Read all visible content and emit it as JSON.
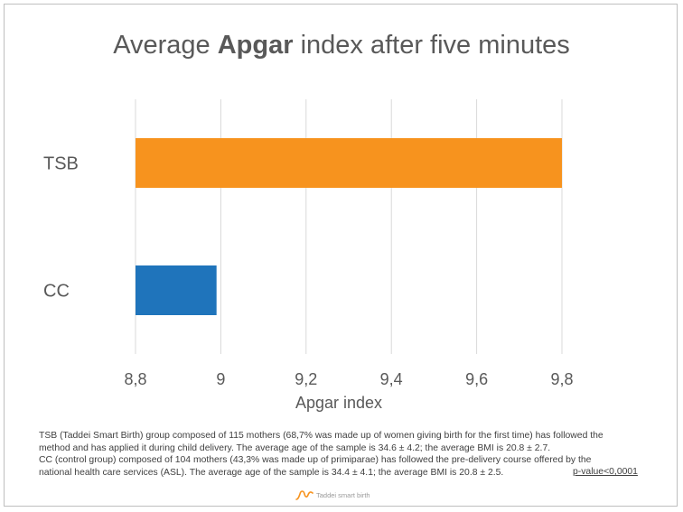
{
  "title": {
    "prefix": "Average ",
    "bold": "Apgar",
    "suffix": " index after five minutes"
  },
  "chart_data": {
    "type": "bar",
    "orientation": "horizontal",
    "title": "Average Apgar index after five minutes",
    "categories": [
      "TSB",
      "CC"
    ],
    "values": [
      9.8,
      8.99
    ],
    "colors": [
      "#f7931e",
      "#1f74bb"
    ],
    "xlabel": "Apgar index",
    "ylabel": "",
    "xlim": [
      8.8,
      9.8
    ],
    "x_ticks": [
      8.8,
      9.0,
      9.2,
      9.4,
      9.6,
      9.8
    ],
    "x_tick_labels": [
      "8,8",
      "9",
      "9,2",
      "9,4",
      "9,6",
      "9,8"
    ],
    "grid": "vertical",
    "legend": "none"
  },
  "footnote": {
    "lines": [
      "TSB (Taddei Smart Birth) group composed of 115 mothers (68,7% was made up of women giving birth for the first time) has followed the",
      "method and has applied it during child delivery. The average age of the sample is 34.6 ± 4.2; the average BMI is 20.8 ± 2.7.",
      "CC (control group) composed of 104 mothers (43,3% was made up of primiparae) has followed the pre-delivery course offered by the",
      "national health care services (ASL). The average age of the sample is 34.4 ± 4.1; the average BMI is 20.8 ± 2.5."
    ],
    "pvalue": "p-value<0,0001"
  },
  "logo": {
    "text": "Taddei smart birth",
    "color": "#f7931e"
  }
}
